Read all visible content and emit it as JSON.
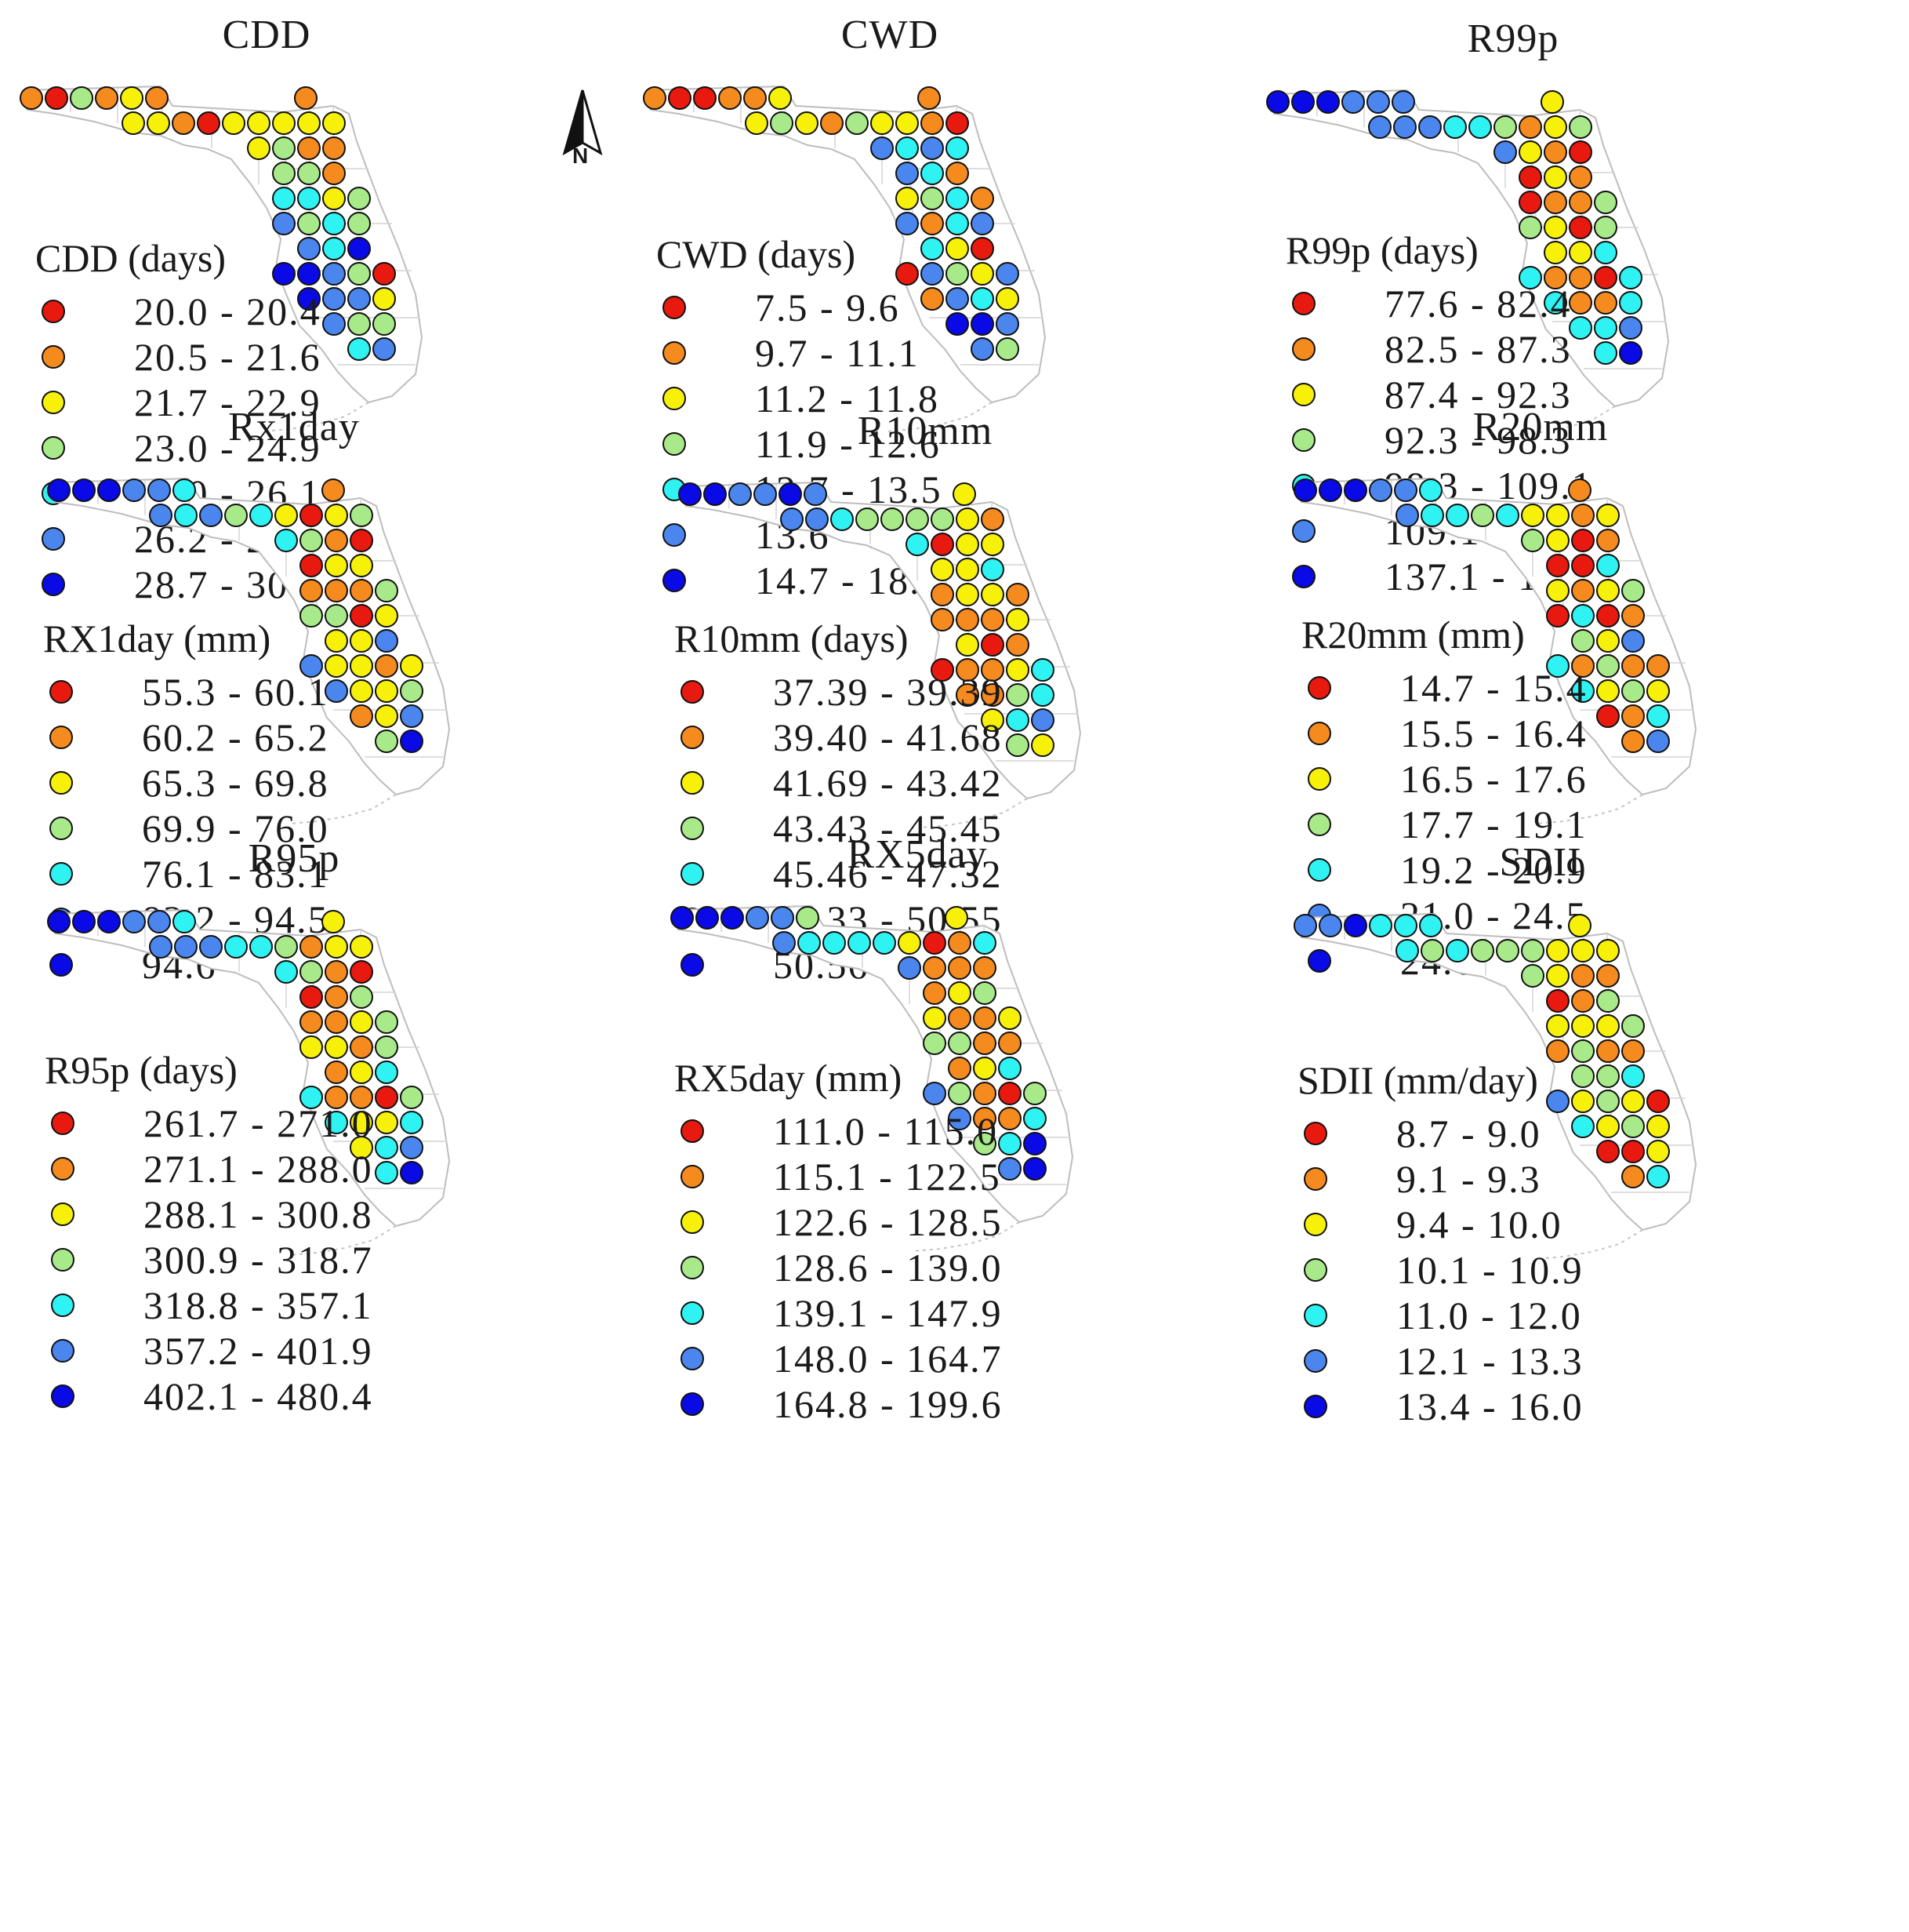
{
  "colors": [
    "#e8190f",
    "#f58a1f",
    "#f7f10a",
    "#a8ea8a",
    "#2ff2f2",
    "#4a86ee",
    "#0a0ae6"
  ],
  "north_arrow": {
    "label": "N"
  },
  "panels": [
    {
      "title": "CDD",
      "legend_title": "CDD (days)",
      "ranges": [
        "20.0 - 20.4",
        "20.5 - 21.6",
        "21.7 - 22.9",
        "23.0 - 24.9",
        "25.0 - 26.1",
        "26.2 - 28.6",
        "28.7 - 30.2"
      ],
      "station_classes": [
        1,
        0,
        3,
        1,
        2,
        1,
        1,
        2,
        2,
        1,
        0,
        2,
        2,
        2,
        2,
        2,
        2,
        3,
        1,
        1,
        3,
        3,
        1,
        4,
        4,
        2,
        3,
        5,
        3,
        4,
        3,
        5,
        4,
        6,
        6,
        6,
        5,
        3,
        0,
        6,
        5,
        5,
        2,
        5,
        3,
        3,
        4,
        5
      ]
    },
    {
      "title": "CWD",
      "legend_title": "CWD (days)",
      "ranges": [
        "7.5 - 9.6",
        "9.7 - 11.1",
        "11.2 - 11.8",
        "11.9 - 12.6",
        "12.7 - 13.5",
        "13.6 - 14.6",
        "14.7 - 18.4"
      ],
      "station_classes": [
        1,
        0,
        0,
        1,
        1,
        2,
        1,
        2,
        3,
        2,
        1,
        3,
        2,
        2,
        1,
        0,
        5,
        4,
        5,
        4,
        5,
        4,
        1,
        2,
        3,
        4,
        1,
        5,
        1,
        4,
        5,
        4,
        2,
        0,
        0,
        5,
        3,
        2,
        5,
        1,
        5,
        4,
        2,
        6,
        6,
        5,
        5,
        3
      ]
    },
    {
      "title": "R99p",
      "legend_title": "R99p (days)",
      "ranges": [
        "77.6 - 82.4",
        "82.5 - 87.3",
        "87.4 - 92.3",
        "92.3 - 98.3",
        "98.3 - 109.1",
        "109.1 - 137.0",
        "137.1 - 173.8"
      ],
      "station_classes": [
        6,
        6,
        6,
        5,
        5,
        5,
        2,
        5,
        5,
        5,
        4,
        4,
        3,
        1,
        2,
        3,
        5,
        2,
        1,
        0,
        0,
        2,
        1,
        0,
        1,
        1,
        3,
        3,
        2,
        0,
        3,
        2,
        2,
        4,
        4,
        1,
        1,
        0,
        4,
        4,
        1,
        1,
        4,
        4,
        4,
        5,
        4,
        6
      ]
    },
    {
      "title": "Rx1day",
      "legend_title": "RX1day (mm)",
      "ranges": [
        "55.3 - 60.1",
        "60.2 - 65.2",
        "65.3 - 69.8",
        "69.9 - 76.0",
        "76.1 - 83.1",
        "83.2 - 94.5",
        "94.6 - 134.7"
      ],
      "station_classes": [
        6,
        6,
        6,
        5,
        5,
        4,
        1,
        5,
        4,
        5,
        3,
        4,
        2,
        0,
        2,
        3,
        4,
        3,
        1,
        0,
        0,
        2,
        2,
        1,
        1,
        1,
        3,
        3,
        3,
        0,
        2,
        2,
        2,
        5,
        5,
        2,
        2,
        1,
        2,
        5,
        2,
        2,
        3,
        1,
        2,
        5,
        3,
        6
      ]
    },
    {
      "title": "R10mm",
      "legend_title": "R10mm (days)",
      "ranges": [
        "37.39 - 39.39",
        "39.40 - 41.68",
        "41.69 - 43.42",
        "43.43 - 45.45",
        "45.46 - 47.32",
        "47.33 - 50.55",
        "50.56 - 54.42"
      ],
      "station_classes": [
        6,
        6,
        5,
        5,
        6,
        5,
        2,
        5,
        5,
        4,
        3,
        3,
        3,
        3,
        2,
        1,
        4,
        0,
        2,
        2,
        2,
        2,
        4,
        1,
        2,
        2,
        1,
        1,
        1,
        1,
        2,
        2,
        0,
        1,
        0,
        1,
        1,
        2,
        4,
        1,
        1,
        3,
        4,
        2,
        4,
        5,
        3,
        2
      ]
    },
    {
      "title": "R20mm",
      "legend_title": "R20mm (mm)",
      "ranges": [
        "14.7 - 15.4",
        "15.5 - 16.4",
        "16.5 - 17.6",
        "17.7 - 19.1",
        "19.2 - 20.9",
        "21.0 - 24.5",
        "24.6 - 28.8"
      ],
      "station_classes": [
        6,
        6,
        6,
        5,
        5,
        4,
        1,
        5,
        4,
        4,
        3,
        4,
        2,
        2,
        1,
        2,
        3,
        2,
        0,
        1,
        0,
        0,
        4,
        2,
        1,
        2,
        3,
        0,
        4,
        0,
        1,
        3,
        2,
        5,
        4,
        1,
        3,
        1,
        1,
        4,
        2,
        3,
        2,
        0,
        1,
        4,
        1,
        5
      ]
    },
    {
      "title": "R95p",
      "legend_title": "R95p (days)",
      "ranges": [
        "261.7 - 271.0",
        "271.1 - 288.0",
        "288.1 - 300.8",
        "300.9 - 318.7",
        "318.8 - 357.1",
        "357.2 - 401.9",
        "402.1 - 480.4"
      ],
      "station_classes": [
        6,
        6,
        6,
        5,
        5,
        4,
        2,
        5,
        5,
        5,
        4,
        4,
        3,
        1,
        2,
        2,
        4,
        3,
        1,
        0,
        0,
        1,
        3,
        1,
        1,
        2,
        3,
        2,
        2,
        1,
        3,
        1,
        2,
        4,
        4,
        1,
        1,
        0,
        3,
        4,
        2,
        2,
        4,
        2,
        4,
        5,
        4,
        6
      ]
    },
    {
      "title": "RX5day",
      "legend_title": "RX5day (mm)",
      "ranges": [
        "111.0 - 115.0",
        "115.1 - 122.5",
        "122.6 - 128.5",
        "128.6 - 139.0",
        "139.1 - 147.9",
        "148.0 - 164.7",
        "164.8 - 199.6"
      ],
      "station_classes": [
        6,
        6,
        6,
        5,
        5,
        3,
        2,
        5,
        4,
        4,
        4,
        4,
        2,
        0,
        1,
        4,
        5,
        1,
        1,
        1,
        1,
        2,
        3,
        2,
        1,
        1,
        2,
        3,
        3,
        1,
        1,
        1,
        2,
        4,
        5,
        3,
        1,
        0,
        3,
        5,
        1,
        1,
        4,
        3,
        4,
        6,
        5,
        6
      ]
    },
    {
      "title": "SDII",
      "legend_title": "SDII (mm/day)",
      "ranges": [
        "8.7 - 9.0",
        "9.1 - 9.3",
        "9.4 - 10.0",
        "10.1 - 10.9",
        "11.0 - 12.0",
        "12.1 - 13.3",
        "13.4 - 16.0"
      ],
      "station_classes": [
        5,
        5,
        6,
        4,
        4,
        4,
        2,
        4,
        3,
        4,
        3,
        3,
        3,
        2,
        2,
        2,
        3,
        2,
        1,
        1,
        0,
        1,
        3,
        2,
        2,
        2,
        3,
        1,
        3,
        1,
        1,
        3,
        3,
        4,
        5,
        2,
        3,
        2,
        0,
        4,
        2,
        3,
        2,
        0,
        0,
        2,
        1,
        4
      ]
    }
  ]
}
